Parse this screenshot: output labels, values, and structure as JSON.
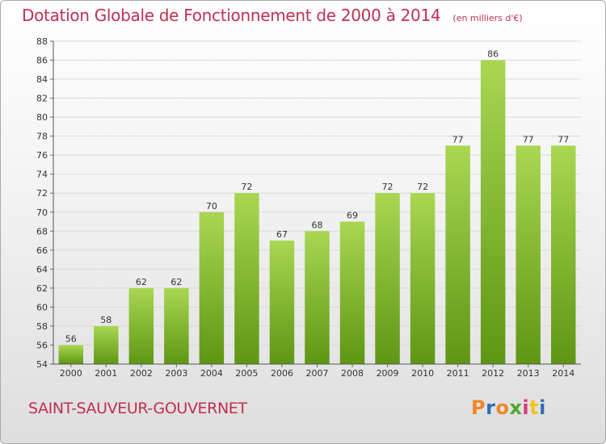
{
  "header": {
    "title": "Dotation Globale de Fonctionnement de 2000 à 2014",
    "unit": "(en milliers d'€)"
  },
  "footer": {
    "commune": "SAINT-SAUVEUR-GOUVERNET",
    "logo": "Proxiti",
    "logo_colors": [
      "#f0862a",
      "#2e6fb5",
      "#f0862a",
      "#4ea82e",
      "#d63a83",
      "#f0c419",
      "#2e6fb5"
    ]
  },
  "colors": {
    "title": "#c0304f",
    "bar_top": "#a9d752",
    "bar_bottom": "#5e9614",
    "grid": "#d9d9d9"
  },
  "chart_data": {
    "type": "bar",
    "categories": [
      "2000",
      "2001",
      "2002",
      "2003",
      "2004",
      "2005",
      "2006",
      "2007",
      "2008",
      "2009",
      "2010",
      "2011",
      "2012",
      "2013",
      "2014"
    ],
    "values": [
      56,
      58,
      62,
      62,
      70,
      72,
      67,
      68,
      69,
      72,
      72,
      77,
      86,
      77,
      77
    ],
    "title": "Dotation Globale de Fonctionnement de 2000 à 2014",
    "subtitle": "(en milliers d'€)",
    "xlabel": "",
    "ylabel": "",
    "ylim": [
      54,
      88
    ],
    "yticks": [
      54,
      56,
      58,
      60,
      62,
      64,
      66,
      68,
      70,
      72,
      74,
      76,
      78,
      80,
      82,
      84,
      86,
      88
    ],
    "grid": true,
    "data_labels": true
  }
}
